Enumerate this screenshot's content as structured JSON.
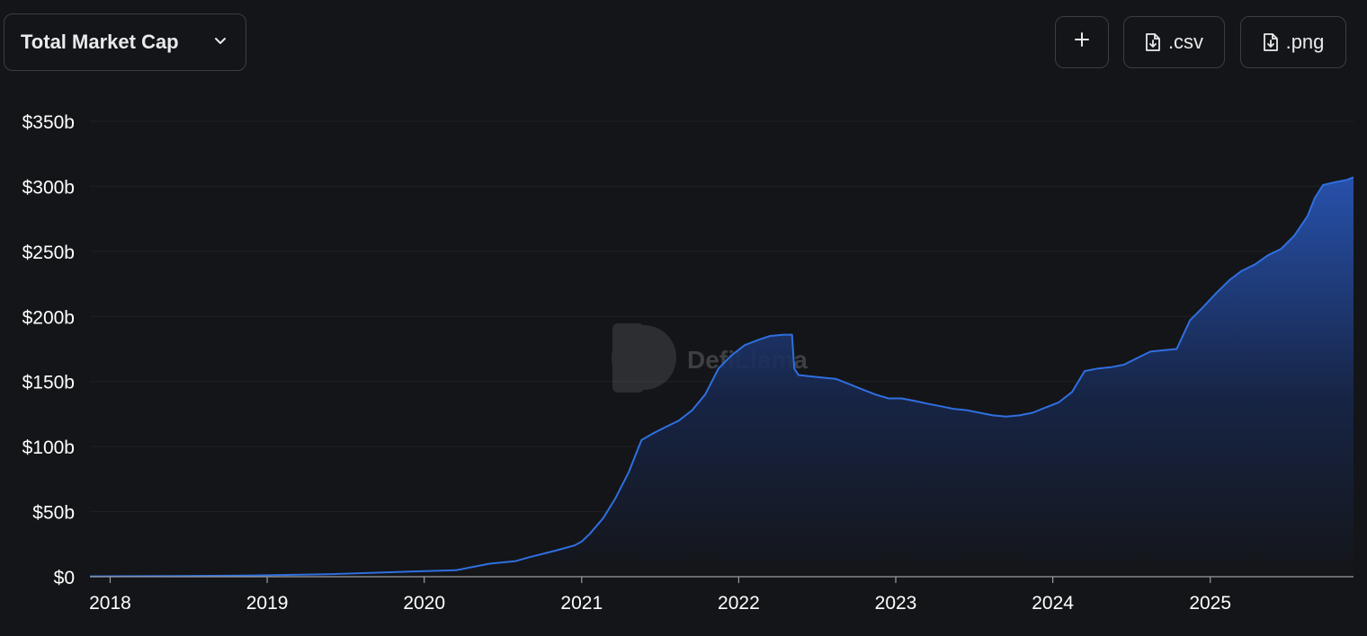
{
  "header": {
    "metric_select": {
      "label": "Total Market Cap",
      "icon": "chevron-down-icon"
    },
    "add_button": {
      "icon": "plus-icon"
    },
    "csv_button": {
      "label": ".csv",
      "icon": "file-download-icon"
    },
    "png_button": {
      "label": ".png",
      "icon": "file-download-icon"
    }
  },
  "watermark": {
    "text": "DefiLlama"
  },
  "colors": {
    "line": "#2f6fe0",
    "fill_top": "#234a9e",
    "background": "#141518",
    "grid": "#1f2126"
  },
  "chart_data": {
    "type": "area",
    "title": "",
    "xlabel": "",
    "ylabel": "",
    "x_ticks": [
      "2018",
      "2019",
      "2020",
      "2021",
      "2022",
      "2023",
      "2024",
      "2025"
    ],
    "y_ticks": [
      "$0",
      "$50b",
      "$100b",
      "$150b",
      "$200b",
      "$250b",
      "$300b",
      "$350b"
    ],
    "ylim": [
      0,
      350
    ],
    "y_unit": "billions USD",
    "grid": true,
    "series": [
      {
        "x": [
          "2017-11-15",
          "2018-06-01",
          "2018-12-01",
          "2019-06-01",
          "2019-12-01",
          "2020-03-15",
          "2020-04-15",
          "2020-06-01",
          "2020-08-01",
          "2020-09-01",
          "2020-11-01",
          "2020-12-15",
          "2021-01-01",
          "2021-01-20",
          "2021-02-20",
          "2021-03-20",
          "2021-04-20",
          "2021-05-20",
          "2021-06-15",
          "2021-07-15",
          "2021-08-15",
          "2021-09-15",
          "2021-10-15",
          "2021-11-15",
          "2021-12-15",
          "2022-01-15",
          "2022-02-15",
          "2022-03-15",
          "2022-04-15",
          "2022-05-05",
          "2022-05-10",
          "2022-05-20",
          "2022-06-15",
          "2022-07-15",
          "2022-08-15",
          "2022-09-15",
          "2022-10-15",
          "2022-11-15",
          "2022-12-15",
          "2023-01-15",
          "2023-02-15",
          "2023-03-15",
          "2023-04-15",
          "2023-05-15",
          "2023-06-15",
          "2023-07-15",
          "2023-08-15",
          "2023-09-15",
          "2023-10-15",
          "2023-11-15",
          "2023-12-15",
          "2024-01-15",
          "2024-02-15",
          "2024-03-15",
          "2024-04-15",
          "2024-05-15",
          "2024-06-15",
          "2024-07-15",
          "2024-08-15",
          "2024-09-15",
          "2024-10-15",
          "2024-11-15",
          "2024-12-15",
          "2025-01-15",
          "2025-02-15",
          "2025-03-15",
          "2025-04-15",
          "2025-05-15",
          "2025-06-15",
          "2025-07-15",
          "2025-08-15",
          "2025-09-01",
          "2025-09-20",
          "2025-10-15",
          "2025-11-15",
          "2025-11-30"
        ],
        "values": [
          0.3,
          0.5,
          1,
          2,
          4,
          5,
          7,
          10,
          12,
          15,
          20,
          24,
          27,
          33,
          45,
          60,
          80,
          105,
          110,
          115,
          120,
          128,
          140,
          160,
          170,
          178,
          182,
          185,
          186,
          186,
          160,
          155,
          154,
          153,
          152,
          148,
          144,
          140,
          137,
          137,
          135,
          133,
          131,
          129,
          128,
          126,
          124,
          123,
          124,
          126,
          130,
          134,
          142,
          158,
          160,
          161,
          163,
          168,
          173,
          174,
          175,
          197,
          207,
          218,
          228,
          235,
          240,
          247,
          252,
          262,
          277,
          291,
          301,
          303,
          305,
          307
        ]
      }
    ]
  }
}
